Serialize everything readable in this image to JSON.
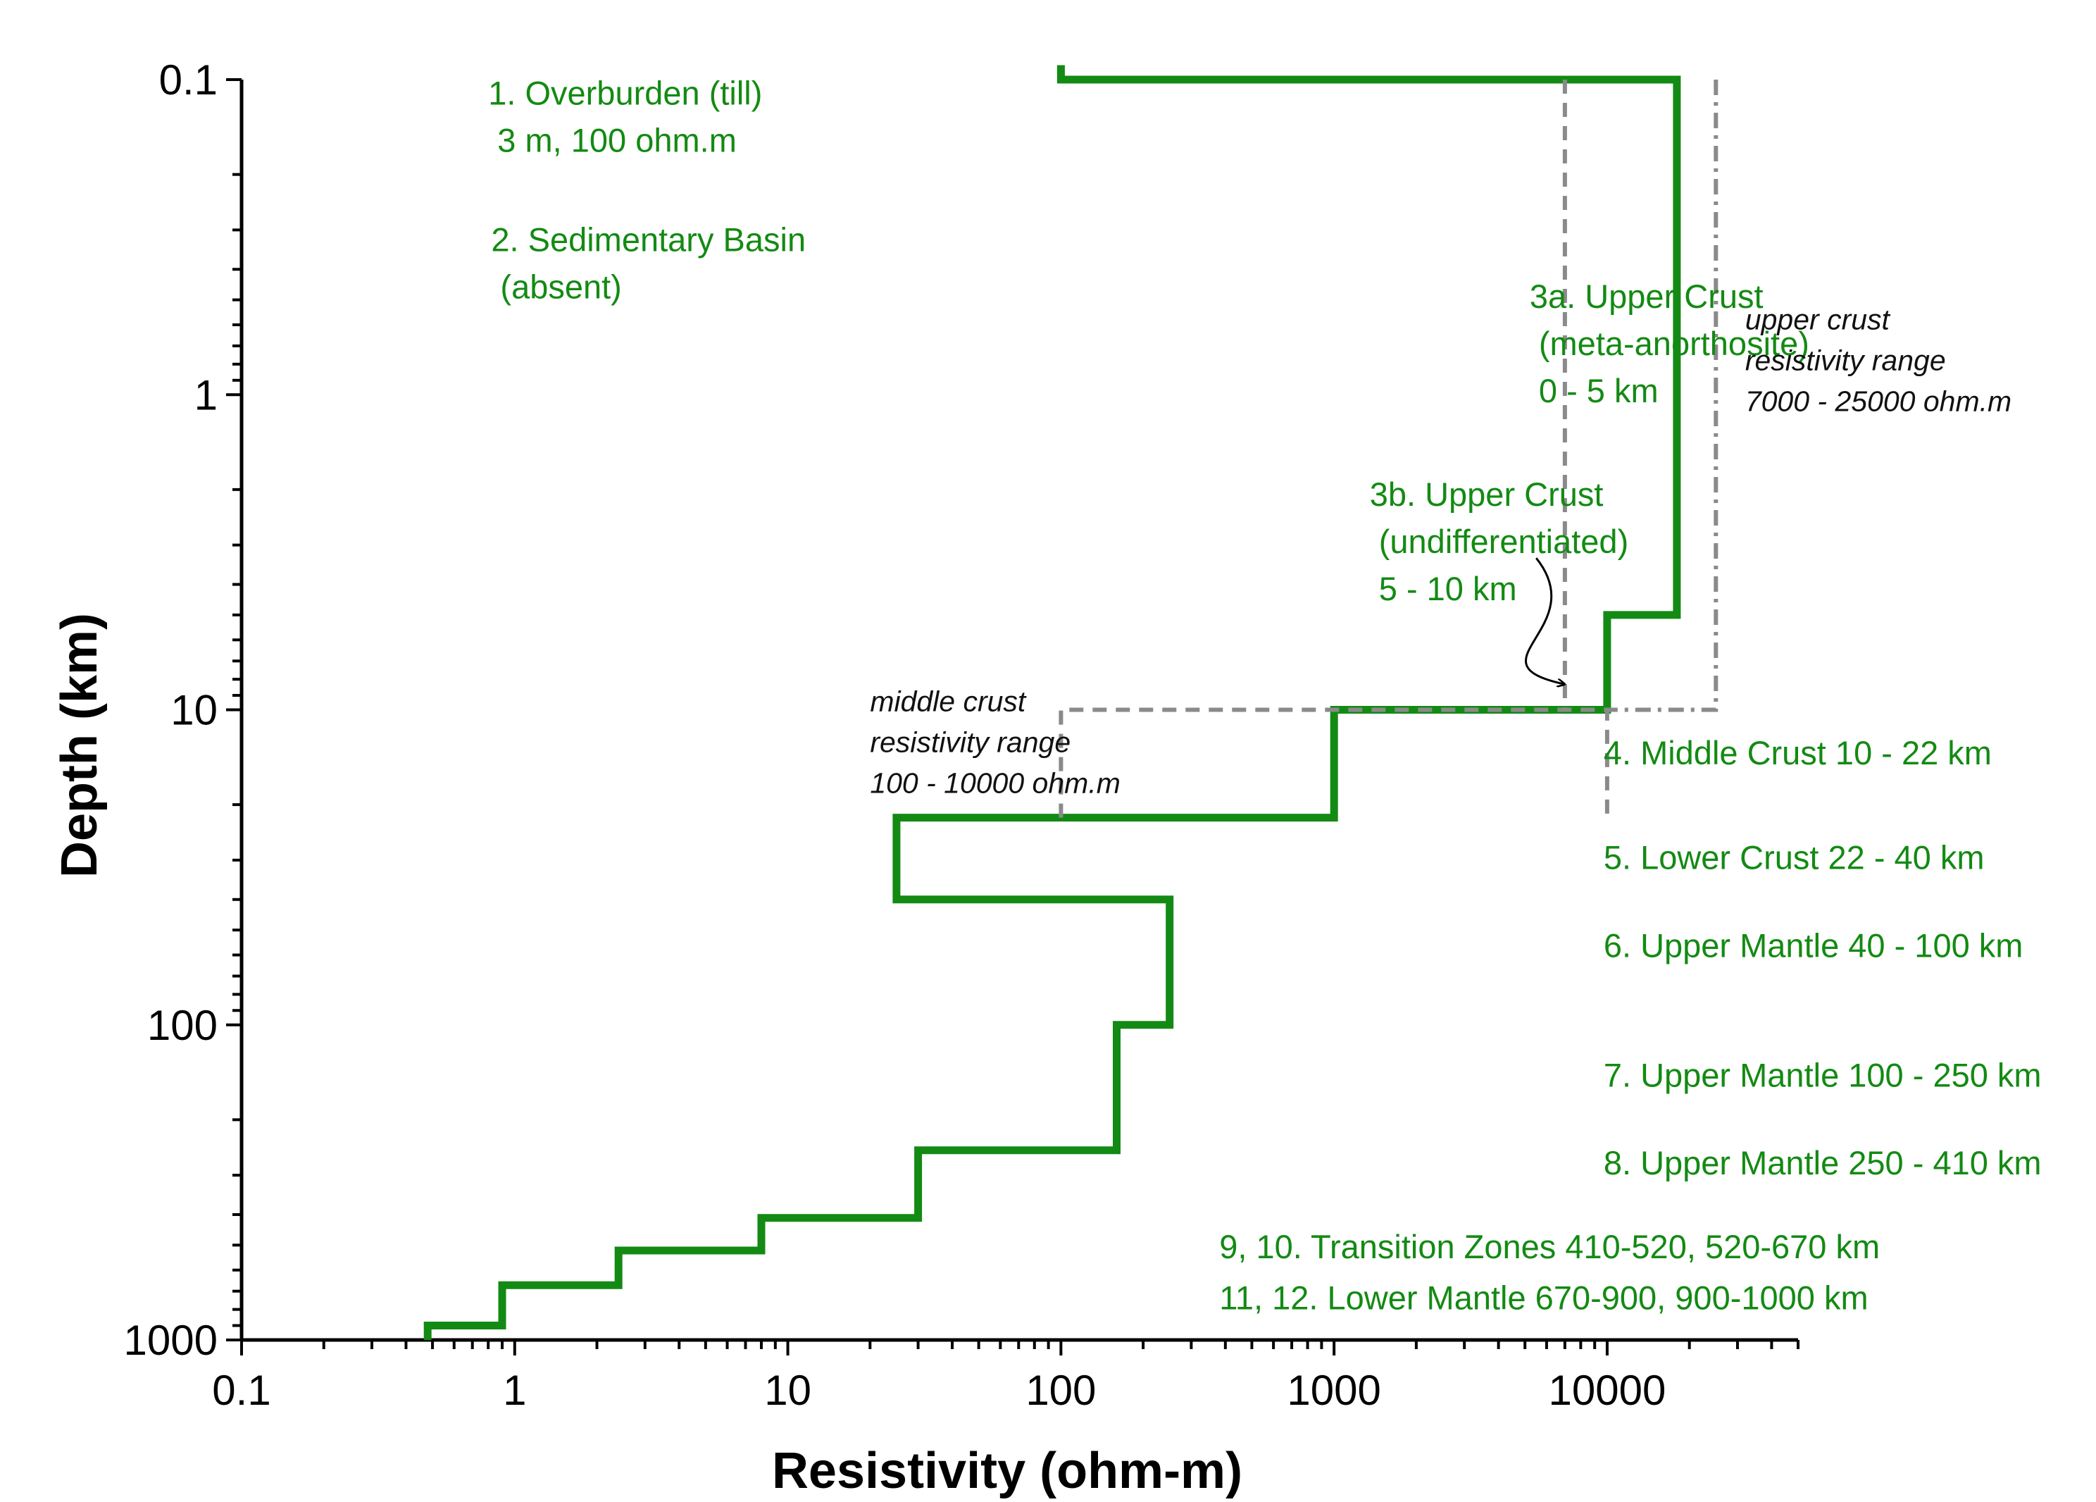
{
  "chart_data": {
    "type": "line",
    "xlabel": "Resistivity (ohm-m)",
    "ylabel": "Depth (km)",
    "x_scale": "log",
    "y_scale": "log",
    "y_inverted": true,
    "xlim": [
      0.1,
      50000
    ],
    "ylim": [
      0.1,
      1000
    ],
    "x_ticks": [
      "0.1",
      "1",
      "10",
      "100",
      "1000",
      "10000"
    ],
    "y_ticks": [
      "0.1",
      "1",
      "10",
      "100",
      "1000"
    ],
    "colors": {
      "model": "#138a13",
      "range": "#8a8a8a",
      "axis": "#000000",
      "note_text": "#138a13"
    },
    "series": [
      {
        "style": "solid",
        "color": "#138a13",
        "points": [
          [
            100,
            0.09
          ],
          [
            100,
            0.1
          ],
          [
            18000,
            0.1
          ],
          [
            18000,
            5
          ],
          [
            10000,
            5
          ],
          [
            10000,
            10
          ],
          [
            1000,
            10
          ],
          [
            1000,
            22
          ],
          [
            25,
            22
          ],
          [
            25,
            40
          ],
          [
            250,
            40
          ],
          [
            250,
            100
          ],
          [
            160,
            100
          ],
          [
            160,
            250
          ],
          [
            30,
            250
          ],
          [
            30,
            410
          ],
          [
            8,
            410
          ],
          [
            8,
            520
          ],
          [
            2.4,
            520
          ],
          [
            2.4,
            670
          ],
          [
            0.9,
            670
          ],
          [
            0.9,
            900
          ],
          [
            0.48,
            900
          ],
          [
            0.48,
            1000
          ]
        ]
      },
      {
        "style": "dashed",
        "color": "#8a8a8a",
        "points": [
          [
            100,
            22
          ],
          [
            100,
            10
          ],
          [
            10000,
            10
          ],
          [
            10000,
            22
          ]
        ]
      },
      {
        "style": "dashed",
        "color": "#8a8a8a",
        "points": [
          [
            7000,
            0.1
          ],
          [
            7000,
            10
          ]
        ]
      },
      {
        "style": "dash-dot",
        "color": "#8a8a8a",
        "points": [
          [
            25000,
            0.1
          ],
          [
            25000,
            10
          ],
          [
            10000,
            10
          ]
        ]
      }
    ],
    "arrow": {
      "from": [
        5500,
        3.3
      ],
      "to": [
        7000,
        8.3
      ]
    },
    "annotations": [
      {
        "lines": [
          "1. Overburden (till)",
          "   3 m, 100 ohm.m"
        ],
        "x": 0.8,
        "y": 0.12,
        "style": "green"
      },
      {
        "lines": [
          "2. Sedimentary Basin",
          "    (absent)"
        ],
        "x": 0.82,
        "y": 0.35,
        "style": "green"
      },
      {
        "lines": [
          "3a. Upper Crust",
          "    (meta-anorthosite)",
          "    0 - 5 km"
        ],
        "x": 5200,
        "y": 0.53,
        "style": "green"
      },
      {
        "lines": [
          "3b. Upper Crust",
          "    (undifferentiated)",
          "    5 - 10 km"
        ],
        "x": 1350,
        "y": 2.25,
        "style": "green"
      },
      {
        "lines": [
          "upper crust",
          "resistivity range",
          "7000 - 25000 ohm.m"
        ],
        "x": 32000,
        "y": 0.62,
        "style": "grey"
      },
      {
        "lines": [
          "middle crust",
          "resistivity range",
          "100 - 10000 ohm.m"
        ],
        "x": 20,
        "y": 10.1,
        "style": "grey"
      },
      {
        "lines": [
          "4. Middle Crust 10 - 22 km"
        ],
        "x": 9700,
        "y": 14.9,
        "style": "green"
      },
      {
        "lines": [
          "5. Lower Crust 22 - 40 km"
        ],
        "x": 9700,
        "y": 32,
        "style": "green"
      },
      {
        "lines": [
          "6. Upper Mantle 40 - 100 km"
        ],
        "x": 9700,
        "y": 61,
        "style": "green"
      },
      {
        "lines": [
          "7. Upper Mantle 100 - 250 km"
        ],
        "x": 9700,
        "y": 157,
        "style": "green"
      },
      {
        "lines": [
          "8. Upper Mantle  250 - 410 km"
        ],
        "x": 9700,
        "y": 298,
        "style": "green"
      },
      {
        "lines": [
          "9, 10. Transition Zones 410-520, 520-670 km"
        ],
        "x": 380,
        "y": 550,
        "style": "green"
      },
      {
        "lines": [
          "11, 12. Lower Mantle 670-900, 900-1000 km"
        ],
        "x": 380,
        "y": 800,
        "style": "green"
      }
    ]
  }
}
